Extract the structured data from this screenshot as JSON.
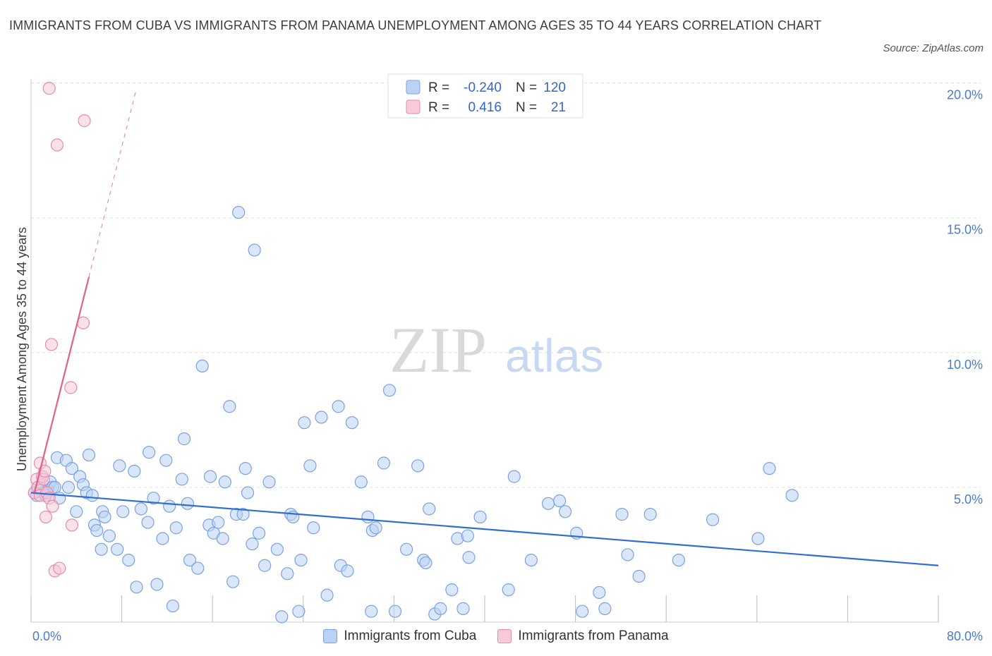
{
  "title": "IMMIGRANTS FROM CUBA VS IMMIGRANTS FROM PANAMA UNEMPLOYMENT AMONG AGES 35 TO 44 YEARS CORRELATION CHART",
  "source": "Source: ZipAtlas.com",
  "watermark": {
    "zip": "ZIP",
    "atlas": "atlas"
  },
  "colors": {
    "cuba_fill": "#bcd2f4",
    "cuba_stroke": "#7aa2e0",
    "cuba_line": "#2f6fd0",
    "panama_fill": "#f8c9d8",
    "panama_stroke": "#e88aa8",
    "panama_line": "#e0608c",
    "grid": "#dddddd",
    "tick_text": "#4a7cc9"
  },
  "legend": {
    "rows": [
      {
        "r_label": "R =",
        "r_value": "-0.240",
        "n_label": "N =",
        "n_value": "120"
      },
      {
        "r_label": "R =",
        "r_value": "0.416",
        "n_label": "N =",
        "n_value": "21"
      }
    ]
  },
  "chart_data": {
    "type": "scatter",
    "title": "IMMIGRANTS FROM CUBA VS IMMIGRANTS FROM PANAMA UNEMPLOYMENT AMONG AGES 35 TO 44 YEARS CORRELATION CHART",
    "xlabel": "",
    "ylabel": "Unemployment Among Ages 35 to 44 years",
    "xlim": [
      0,
      80
    ],
    "ylim": [
      0,
      20.5
    ],
    "x_ticks": [
      0,
      8,
      16,
      24,
      32,
      40,
      48,
      56,
      64,
      72,
      80
    ],
    "x_tick_labels": {
      "0": "0.0%",
      "80": "80.0%"
    },
    "y_ticks": [
      5,
      10,
      15,
      20
    ],
    "y_tick_labels": [
      "5.0%",
      "10.0%",
      "15.0%",
      "20.0%"
    ],
    "series": [
      {
        "name": "Immigrants from Cuba",
        "r": -0.24,
        "n": 120,
        "trend": {
          "x0": 0,
          "y0": 4.8,
          "x1": 80,
          "y1": 2.1
        },
        "points": [
          [
            0.3,
            4.8
          ],
          [
            0.5,
            4.7
          ],
          [
            0.6,
            5.0
          ],
          [
            0.8,
            4.9
          ],
          [
            1.0,
            5.1
          ],
          [
            1.1,
            4.8
          ],
          [
            1.3,
            4.7
          ],
          [
            1.5,
            4.9
          ],
          [
            1.7,
            5.2
          ],
          [
            1.9,
            5.0
          ],
          [
            2.1,
            5.0
          ],
          [
            2.3,
            6.1
          ],
          [
            2.5,
            4.6
          ],
          [
            3.1,
            6.0
          ],
          [
            3.3,
            5.0
          ],
          [
            3.6,
            5.7
          ],
          [
            4.3,
            5.4
          ],
          [
            4.6,
            5.1
          ],
          [
            4.9,
            4.8
          ],
          [
            5.1,
            6.2
          ],
          [
            5.4,
            4.7
          ],
          [
            4.0,
            4.1
          ],
          [
            5.6,
            3.6
          ],
          [
            5.8,
            3.4
          ],
          [
            6.2,
            2.7
          ],
          [
            6.3,
            4.1
          ],
          [
            6.5,
            3.9
          ],
          [
            6.9,
            3.2
          ],
          [
            7.6,
            2.7
          ],
          [
            7.8,
            5.8
          ],
          [
            8.1,
            4.1
          ],
          [
            8.6,
            2.3
          ],
          [
            9.1,
            5.6
          ],
          [
            9.3,
            1.3
          ],
          [
            9.7,
            4.2
          ],
          [
            10.3,
            3.7
          ],
          [
            10.4,
            6.3
          ],
          [
            10.8,
            4.6
          ],
          [
            11.1,
            1.4
          ],
          [
            11.6,
            3.1
          ],
          [
            11.9,
            6.0
          ],
          [
            12.2,
            4.3
          ],
          [
            12.5,
            0.6
          ],
          [
            12.8,
            3.5
          ],
          [
            13.3,
            5.3
          ],
          [
            13.5,
            6.8
          ],
          [
            13.8,
            4.4
          ],
          [
            14.0,
            2.3
          ],
          [
            14.7,
            2.0
          ],
          [
            15.1,
            9.5
          ],
          [
            15.7,
            3.6
          ],
          [
            15.8,
            5.4
          ],
          [
            16.1,
            3.3
          ],
          [
            16.5,
            3.7
          ],
          [
            16.9,
            3.1
          ],
          [
            17.1,
            5.2
          ],
          [
            17.5,
            8.0
          ],
          [
            17.8,
            1.5
          ],
          [
            18.1,
            4.0
          ],
          [
            18.3,
            15.2
          ],
          [
            18.7,
            4.0
          ],
          [
            18.9,
            5.7
          ],
          [
            19.1,
            4.8
          ],
          [
            19.5,
            2.9
          ],
          [
            19.7,
            13.8
          ],
          [
            20.1,
            3.3
          ],
          [
            20.6,
            2.1
          ],
          [
            21.0,
            5.2
          ],
          [
            21.7,
            2.7
          ],
          [
            22.1,
            0.2
          ],
          [
            22.6,
            1.8
          ],
          [
            22.9,
            4.0
          ],
          [
            23.1,
            3.9
          ],
          [
            23.6,
            0.4
          ],
          [
            23.8,
            2.3
          ],
          [
            24.1,
            7.4
          ],
          [
            24.6,
            5.8
          ],
          [
            24.9,
            3.5
          ],
          [
            25.6,
            7.6
          ],
          [
            26.1,
            1.0
          ],
          [
            27.1,
            8.0
          ],
          [
            27.3,
            2.1
          ],
          [
            27.9,
            1.9
          ],
          [
            28.3,
            7.4
          ],
          [
            29.1,
            5.2
          ],
          [
            29.7,
            3.9
          ],
          [
            30.0,
            0.4
          ],
          [
            30.1,
            3.4
          ],
          [
            30.4,
            3.5
          ],
          [
            31.1,
            5.9
          ],
          [
            31.6,
            8.6
          ],
          [
            32.1,
            0.4
          ],
          [
            33.1,
            2.7
          ],
          [
            34.1,
            5.8
          ],
          [
            34.6,
            2.3
          ],
          [
            34.8,
            2.2
          ],
          [
            35.1,
            4.2
          ],
          [
            35.6,
            0.3
          ],
          [
            36.1,
            0.5
          ],
          [
            37.1,
            1.2
          ],
          [
            37.6,
            3.1
          ],
          [
            38.1,
            0.5
          ],
          [
            38.5,
            3.2
          ],
          [
            38.6,
            2.4
          ],
          [
            39.6,
            3.9
          ],
          [
            42.1,
            1.2
          ],
          [
            42.6,
            5.4
          ],
          [
            44.1,
            2.3
          ],
          [
            45.6,
            4.4
          ],
          [
            46.6,
            4.5
          ],
          [
            47.1,
            4.1
          ],
          [
            48.1,
            3.3
          ],
          [
            48.6,
            0.4
          ],
          [
            50.1,
            1.1
          ],
          [
            50.6,
            0.5
          ],
          [
            52.1,
            4.0
          ],
          [
            52.6,
            2.5
          ],
          [
            53.6,
            1.7
          ],
          [
            54.6,
            4.0
          ],
          [
            57.1,
            2.3
          ],
          [
            60.1,
            3.8
          ],
          [
            64.1,
            3.1
          ],
          [
            65.1,
            5.7
          ],
          [
            67.1,
            4.7
          ]
        ]
      },
      {
        "name": "Immigrants from Panama",
        "r": 0.416,
        "n": 21,
        "trend_solid": {
          "x0": 0.3,
          "y0": 4.8,
          "x1": 5.1,
          "y1": 12.8
        },
        "trend_dashed": {
          "x0": 5.1,
          "y0": 12.8,
          "x1": 9.3,
          "y1": 19.8
        },
        "points": [
          [
            0.3,
            4.8
          ],
          [
            0.5,
            5.3
          ],
          [
            0.6,
            5.0
          ],
          [
            0.8,
            4.7
          ],
          [
            0.8,
            5.9
          ],
          [
            1.0,
            5.4
          ],
          [
            1.1,
            5.3
          ],
          [
            1.2,
            5.6
          ],
          [
            1.3,
            3.9
          ],
          [
            1.4,
            4.8
          ],
          [
            1.6,
            4.6
          ],
          [
            1.6,
            19.8
          ],
          [
            1.8,
            10.3
          ],
          [
            1.9,
            4.3
          ],
          [
            2.1,
            1.9
          ],
          [
            2.3,
            17.7
          ],
          [
            2.5,
            2.0
          ],
          [
            3.5,
            8.7
          ],
          [
            3.6,
            3.6
          ],
          [
            4.6,
            11.1
          ],
          [
            4.7,
            18.6
          ]
        ]
      }
    ]
  },
  "bottom_legend": {
    "cuba": "Immigrants from Cuba",
    "panama": "Immigrants from Panama"
  }
}
